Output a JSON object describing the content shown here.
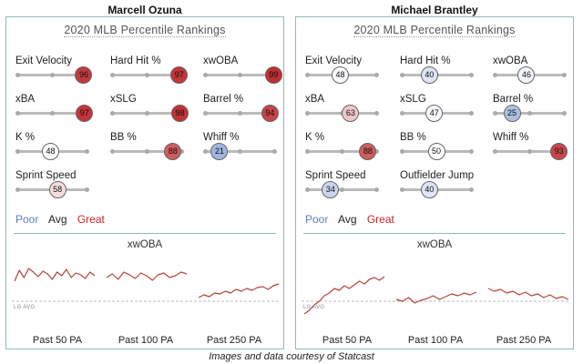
{
  "players": [
    {
      "name": "Marcell Ozuna",
      "title": "2020 MLB Percentile Rankings",
      "metrics": [
        {
          "label": "Exit Velocity",
          "value": 96
        },
        {
          "label": "Hard Hit %",
          "value": 97
        },
        {
          "label": "xwOBA",
          "value": 99
        },
        {
          "label": "xBA",
          "value": 97
        },
        {
          "label": "xSLG",
          "value": 98
        },
        {
          "label": "Barrel %",
          "value": 94
        },
        {
          "label": "K %",
          "value": 48
        },
        {
          "label": "BB %",
          "value": 88
        },
        {
          "label": "Whiff %",
          "value": 21
        },
        {
          "label": "Sprint Speed",
          "value": 58
        }
      ],
      "xwoba_trend_shape": "consistently above league average in all three windows"
    },
    {
      "name": "Michael Brantley",
      "title": "2020 MLB Percentile Rankings",
      "metrics": [
        {
          "label": "Exit Velocity",
          "value": 48
        },
        {
          "label": "Hard Hit %",
          "value": 40
        },
        {
          "label": "xwOBA",
          "value": 46
        },
        {
          "label": "xBA",
          "value": 63
        },
        {
          "label": "xSLG",
          "value": 47
        },
        {
          "label": "Barrel %",
          "value": 25
        },
        {
          "label": "K %",
          "value": 88
        },
        {
          "label": "BB %",
          "value": 50
        },
        {
          "label": "Whiff %",
          "value": 93
        },
        {
          "label": "Sprint Speed",
          "value": 34
        },
        {
          "label": "Outfielder Jump",
          "value": 40
        }
      ],
      "xwoba_trend_shape": "started below league average, climbing above in the 50 PA window, hovering near average in the 100 and 250 PA windows"
    }
  ],
  "legend": {
    "poor": "Poor",
    "avg": "Avg",
    "great": "Great"
  },
  "colors": {
    "poor": "#5b7fc7",
    "avg": "#ffffff",
    "great": "#c0282d",
    "trend": "#b5433a",
    "lg_avg": "#bdbdbd",
    "border": "#8fb9bd"
  },
  "xwoba_title": "xwOBA",
  "lg_avg_label": "LG AVG",
  "window_labels": [
    "Past 50 PA",
    "Past 100 PA",
    "Past 250 PA"
  ],
  "footer": "Images and data courtesy of Statcast",
  "chart_data": [
    {
      "type": "bar",
      "title": "2020 MLB Percentile Rankings",
      "subtitle": "Marcell Ozuna",
      "categories": [
        "Exit Velocity",
        "Hard Hit %",
        "xwOBA",
        "xBA",
        "xSLG",
        "Barrel %",
        "K %",
        "BB %",
        "Whiff %",
        "Sprint Speed"
      ],
      "values": [
        96,
        97,
        99,
        97,
        98,
        94,
        48,
        88,
        21,
        58
      ],
      "ylim": [
        0,
        100
      ]
    },
    {
      "type": "bar",
      "title": "2020 MLB Percentile Rankings",
      "subtitle": "Michael Brantley",
      "categories": [
        "Exit Velocity",
        "Hard Hit %",
        "xwOBA",
        "xBA",
        "xSLG",
        "Barrel %",
        "K %",
        "BB %",
        "Whiff %",
        "Sprint Speed",
        "Outfielder Jump"
      ],
      "values": [
        48,
        40,
        46,
        63,
        47,
        25,
        88,
        50,
        93,
        34,
        40
      ],
      "ylim": [
        0,
        100
      ]
    }
  ]
}
